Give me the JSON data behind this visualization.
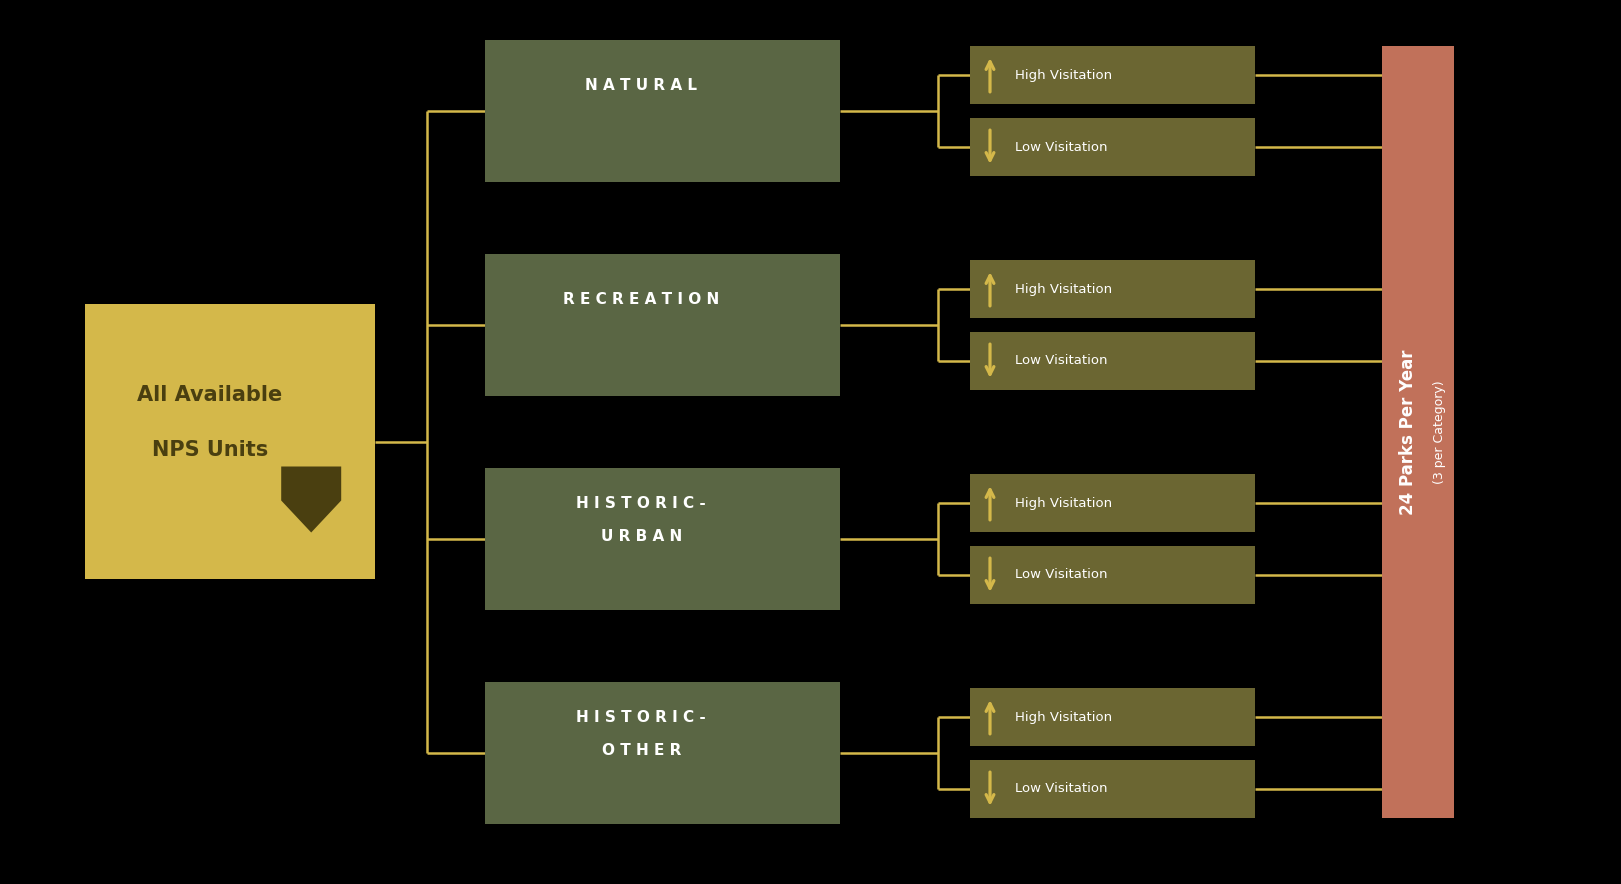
{
  "bg_color": "#000000",
  "left_box_color": "#d4b84a",
  "left_box_text_color": "#4a3f10",
  "left_box_text_line1": "All Available",
  "left_box_text_line2": "NPS Units",
  "middle_box_color": "#5a6644",
  "middle_box_text_color": "#ffffff",
  "middle_categories": [
    [
      "N A T U R A L",
      ""
    ],
    [
      "R E C R E A T I O N",
      ""
    ],
    [
      "H I S T O R I C -",
      "U R B A N"
    ],
    [
      "H I S T O R I C -",
      "O T H E R"
    ]
  ],
  "right_box_color": "#6b6632",
  "right_box_text_color": "#ffffff",
  "arrow_color": "#d4b84a",
  "connector_color": "#d4b84a",
  "final_bar_color": "#c1715a",
  "final_bar_text": "24 Parks Per Year",
  "final_bar_subtext": "(3 per Category)",
  "final_bar_text_color": "#ffffff",
  "shield_color": "#4a3f10"
}
